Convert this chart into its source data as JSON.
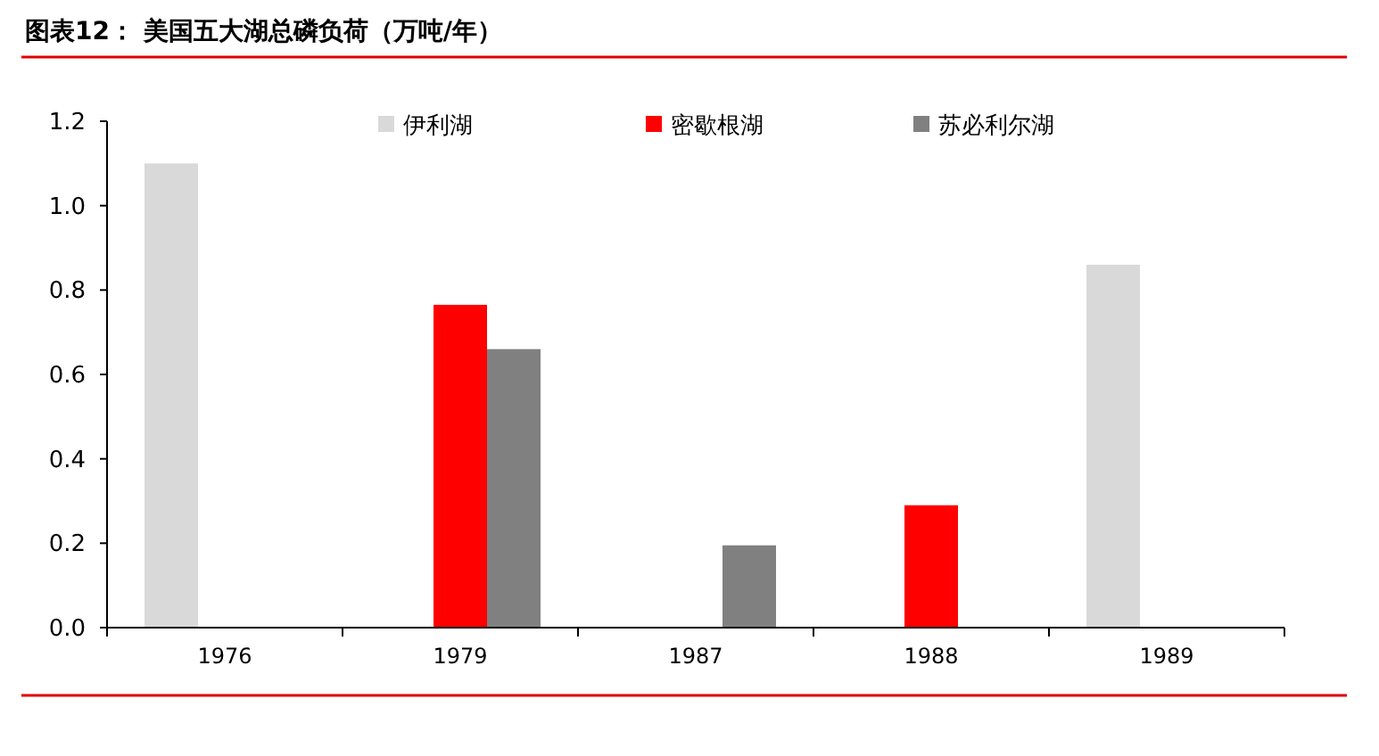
{
  "chart_data": {
    "type": "bar",
    "title": "图表12：  美国五大湖总磷负荷（万吨/年）",
    "categories": [
      "1976",
      "1979",
      "1987",
      "1988",
      "1989"
    ],
    "series": [
      {
        "name": "伊利湖",
        "color": "#d9d9d9",
        "values": [
          1.1,
          null,
          null,
          null,
          0.86
        ]
      },
      {
        "name": "密歇根湖",
        "color": "#ff0000",
        "values": [
          null,
          0.765,
          null,
          0.29,
          null
        ]
      },
      {
        "name": "苏必利尔湖",
        "color": "#808080",
        "values": [
          null,
          0.66,
          0.195,
          null,
          null
        ]
      }
    ],
    "ylim": [
      0,
      1.2
    ],
    "yticks": [
      {
        "value": 0,
        "label": "0.0"
      },
      0.2,
      0.4,
      0.6,
      0.8,
      {
        "value": 1,
        "label": "1.0"
      },
      1.2
    ],
    "grid": false,
    "legend": "top"
  }
}
